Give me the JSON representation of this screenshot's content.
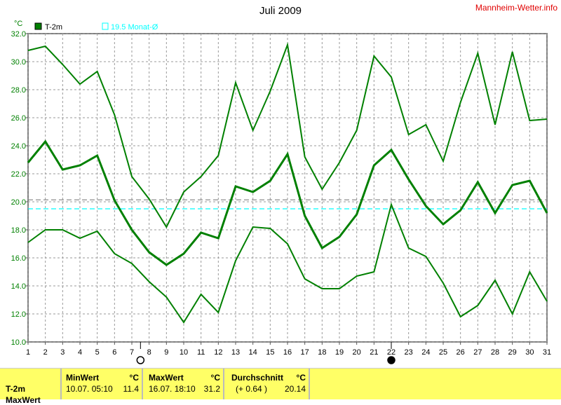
{
  "title": "Juli 2009",
  "brand": "Mannheim-Wetter.info",
  "unit": "°C",
  "legend": [
    {
      "label": "T-2m",
      "color": "#008000"
    },
    {
      "label": "19.5 Monat-Ø",
      "color": "#00ffff"
    }
  ],
  "chart_data": {
    "type": "line",
    "title": "Juli 2009",
    "ylabel": "°C",
    "ylim": [
      10,
      32
    ],
    "yticks": [
      "10.0",
      "12.0",
      "14.0",
      "16.0",
      "18.0",
      "20.0",
      "22.0",
      "24.0",
      "26.0",
      "28.0",
      "30.0",
      "32.0"
    ],
    "x": [
      1,
      2,
      3,
      4,
      5,
      6,
      7,
      8,
      9,
      10,
      11,
      12,
      13,
      14,
      15,
      16,
      17,
      18,
      19,
      20,
      21,
      22,
      23,
      24,
      25,
      26,
      27,
      28,
      29,
      30,
      31
    ],
    "grid": true,
    "series": [
      {
        "values": [
          30.8,
          31.1,
          29.8,
          28.4,
          29.3,
          26.2,
          21.8,
          20.2,
          18.2,
          20.7,
          21.8,
          23.3,
          28.5,
          25.1,
          27.9,
          31.2,
          23.2,
          20.9,
          22.8,
          25.1,
          30.4,
          28.9,
          24.8,
          25.5,
          22.9,
          27.1,
          30.6,
          25.5,
          30.7,
          25.8,
          25.9
        ]
      },
      {
        "values": [
          22.8,
          24.3,
          22.3,
          22.6,
          23.3,
          20.1,
          18.0,
          16.4,
          15.5,
          16.3,
          17.8,
          17.4,
          21.1,
          20.7,
          21.5,
          23.4,
          19.0,
          16.7,
          17.5,
          19.1,
          22.6,
          23.7,
          21.6,
          19.7,
          18.4,
          19.4,
          21.4,
          19.2,
          21.2,
          21.5,
          19.2
        ]
      },
      {
        "values": [
          17.1,
          18.0,
          18.0,
          17.4,
          17.9,
          16.3,
          15.6,
          14.3,
          13.2,
          11.4,
          13.4,
          12.1,
          15.8,
          18.2,
          18.1,
          17.0,
          14.5,
          13.8,
          13.8,
          14.7,
          15.0,
          19.8,
          16.7,
          16.1,
          14.2,
          11.8,
          12.6,
          14.4,
          12.0,
          15.0,
          12.9
        ]
      }
    ],
    "reference_lines": [
      {
        "value": 20.14,
        "color": "#808080"
      },
      {
        "value": 19.5,
        "color": "#00ffff"
      }
    ],
    "moon_phases": [
      {
        "day": 7.5,
        "phase": "full-moon"
      },
      {
        "day": 22,
        "phase": "new-moon"
      }
    ]
  },
  "table": {
    "row_label": "T-2m",
    "row_label2": "MaxWert",
    "min": {
      "header": "MinWert",
      "unit": "°C",
      "date": "10.07.  05:10",
      "value": "11.4"
    },
    "max": {
      "header": "MaxWert",
      "unit": "°C",
      "date": "16.07.  18:10",
      "value": "31.2"
    },
    "avg": {
      "header": "Durchschnitt",
      "unit": "°C",
      "delta": "(+ 0.64 )",
      "value": "20.14"
    }
  }
}
